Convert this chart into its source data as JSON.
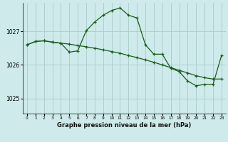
{
  "title": "Graphe pression niveau de la mer (hPa)",
  "background_color": "#ceeaea",
  "grid_color": "#aacccc",
  "line_color": "#1a5c1a",
  "xlim": [
    -0.5,
    23.5
  ],
  "ylim": [
    1024.55,
    1027.85
  ],
  "yticks": [
    1025,
    1026,
    1027
  ],
  "xticks": [
    0,
    1,
    2,
    3,
    4,
    5,
    6,
    7,
    8,
    9,
    10,
    11,
    12,
    13,
    14,
    15,
    16,
    17,
    18,
    19,
    20,
    21,
    22,
    23
  ],
  "series1_x": [
    0,
    1,
    2,
    3,
    4,
    5,
    6,
    7,
    8,
    9,
    10,
    11,
    12,
    13,
    14,
    15,
    16,
    17,
    18,
    19,
    20,
    21,
    22,
    23
  ],
  "series1_y": [
    1026.6,
    1026.7,
    1026.72,
    1026.68,
    1026.65,
    1026.62,
    1026.58,
    1026.54,
    1026.5,
    1026.45,
    1026.4,
    1026.35,
    1026.28,
    1026.22,
    1026.15,
    1026.08,
    1026.0,
    1025.92,
    1025.84,
    1025.76,
    1025.68,
    1025.62,
    1025.58,
    1025.58
  ],
  "series2_x": [
    0,
    1,
    2,
    3,
    4,
    5,
    6,
    7,
    8,
    9,
    10,
    11,
    12,
    13,
    14,
    15,
    16,
    17,
    18,
    19,
    20,
    21,
    22,
    23
  ],
  "series2_y": [
    1026.6,
    1026.7,
    1026.72,
    1026.68,
    1026.65,
    1026.38,
    1026.42,
    1027.02,
    1027.28,
    1027.48,
    1027.62,
    1027.7,
    1027.48,
    1027.4,
    1026.6,
    1026.32,
    1026.32,
    1025.9,
    1025.8,
    1025.52,
    1025.38,
    1025.42,
    1025.42,
    1026.28
  ]
}
